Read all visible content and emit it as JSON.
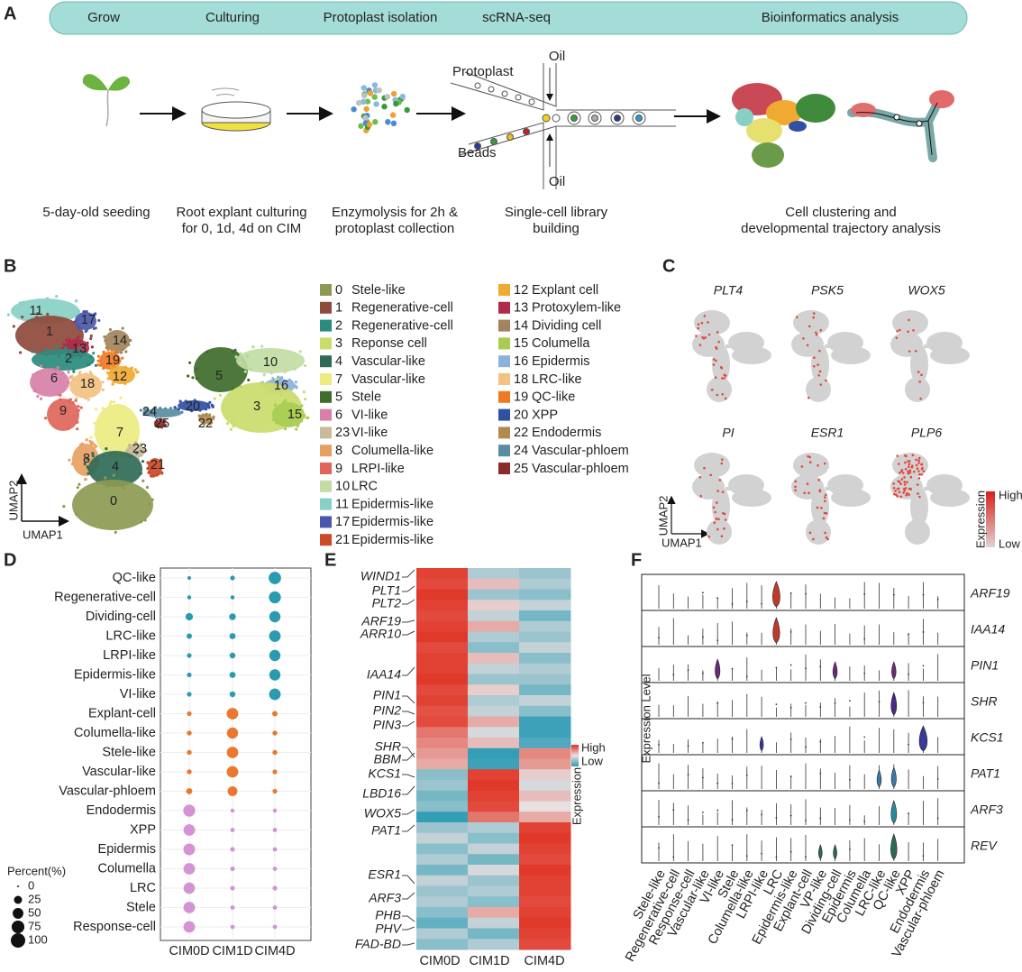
{
  "panel_a": {
    "label": "A",
    "steps": [
      "Grow",
      "Culturing",
      "Protoplast isolation",
      "scRNA-seq",
      "Bioinformatics analysis"
    ],
    "captions": [
      [
        "5-day-old seeding"
      ],
      [
        "Root explant culturing",
        "for 0, 1d, 4d  on CIM"
      ],
      [
        "Enzymolysis for 2h &",
        "protoplast collection"
      ],
      [
        "Single-cell library",
        "building"
      ],
      [
        "Cell clustering and",
        "developmental trajectory analysis"
      ]
    ],
    "device_labels": [
      "Protoplast",
      "Oil",
      "Beads",
      "Oil"
    ]
  },
  "panel_b": {
    "label": "B",
    "x_label": "UMAP1",
    "y_label": "UMAP2",
    "clusters": [
      {
        "id": "0",
        "name": "Stele-like",
        "color": "#8c9a52"
      },
      {
        "id": "1",
        "name": "Regenerative-cell",
        "color": "#8e4a3c"
      },
      {
        "id": "2",
        "name": "Regenerative-cell",
        "color": "#2a8c7c"
      },
      {
        "id": "3",
        "name": "Reponse cell",
        "color": "#cbdc6c"
      },
      {
        "id": "4",
        "name": "Vascular-like",
        "color": "#2f6a57"
      },
      {
        "id": "7",
        "name": "Vascular-like",
        "color": "#ecec80"
      },
      {
        "id": "5",
        "name": "Stele",
        "color": "#3f6b2b"
      },
      {
        "id": "6",
        "name": "VI-like",
        "color": "#d880a8"
      },
      {
        "id": "23",
        "name": "VI-like",
        "color": "#c9ba9c"
      },
      {
        "id": "8",
        "name": "Columella-like",
        "color": "#e8a062"
      },
      {
        "id": "9",
        "name": "LRPI-like",
        "color": "#e0665a"
      },
      {
        "id": "10",
        "name": "LRC",
        "color": "#c2dca4"
      },
      {
        "id": "11",
        "name": "Epidermis-like",
        "color": "#88d0c6"
      },
      {
        "id": "17",
        "name": "Epidermis-like",
        "color": "#4a58ac"
      },
      {
        "id": "21",
        "name": "Epidermis-like",
        "color": "#cc4a28"
      },
      {
        "id": "12",
        "name": "Explant cell",
        "color": "#f0aa32"
      },
      {
        "id": "13",
        "name": "Protoxylem-like",
        "color": "#b02a4a"
      },
      {
        "id": "14",
        "name": "Dividing cell",
        "color": "#a2845c"
      },
      {
        "id": "15",
        "name": "Columella",
        "color": "#a8cc52"
      },
      {
        "id": "16",
        "name": "Epidermis",
        "color": "#8cb2da"
      },
      {
        "id": "18",
        "name": "LRC-like",
        "color": "#f2c282"
      },
      {
        "id": "19",
        "name": "QC-like",
        "color": "#f07a22"
      },
      {
        "id": "20",
        "name": "XPP",
        "color": "#3050a2"
      },
      {
        "id": "22",
        "name": "Endodermis",
        "color": "#b08a52"
      },
      {
        "id": "24",
        "name": "Vascular-phloem",
        "color": "#5a8ca2"
      },
      {
        "id": "25",
        "name": "Vascular-phloem",
        "color": "#8a2c2c"
      }
    ]
  },
  "panel_c": {
    "label": "C",
    "genes": [
      "PLT4",
      "PSK5",
      "WOX5",
      "PI",
      "ESR1",
      "PLP6"
    ],
    "legend_title": "Expression",
    "legend_high": "High",
    "legend_low": "Low",
    "x_label": "UMAP1",
    "y_label": "UMAP2"
  },
  "panel_d": {
    "label": "D",
    "columns": [
      "CIM0D",
      "CIM1D",
      "CIM4D"
    ],
    "rows": [
      {
        "name": "QC-like",
        "color": "#2a9ab0",
        "values": [
          2,
          5,
          70
        ]
      },
      {
        "name": "Regenerative-cell",
        "color": "#2a9ab0",
        "values": [
          3,
          3,
          65
        ]
      },
      {
        "name": "Dividing-cell",
        "color": "#2a9ab0",
        "values": [
          20,
          15,
          55
        ]
      },
      {
        "name": "LRC-like",
        "color": "#2a9ab0",
        "values": [
          8,
          12,
          60
        ]
      },
      {
        "name": "LRPI-like",
        "color": "#2a9ab0",
        "values": [
          5,
          10,
          55
        ]
      },
      {
        "name": "Epidermis-like",
        "color": "#2a9ab0",
        "values": [
          5,
          12,
          55
        ]
      },
      {
        "name": "VI-like",
        "color": "#2a9ab0",
        "values": [
          5,
          10,
          60
        ]
      },
      {
        "name": "Explant-cell",
        "color": "#ea7830",
        "values": [
          5,
          60,
          8
        ]
      },
      {
        "name": "Columella-like",
        "color": "#ea7830",
        "values": [
          6,
          55,
          6
        ]
      },
      {
        "name": "Stele-like",
        "color": "#ea7830",
        "values": [
          6,
          58,
          6
        ]
      },
      {
        "name": "Vascular-like",
        "color": "#ea7830",
        "values": [
          6,
          60,
          5
        ]
      },
      {
        "name": "Vascular-phloem",
        "color": "#ea7830",
        "values": [
          12,
          40,
          5
        ]
      },
      {
        "name": "Endodermis",
        "color": "#d494d4",
        "values": [
          65,
          3,
          3
        ]
      },
      {
        "name": "XPP",
        "color": "#d494d4",
        "values": [
          60,
          4,
          4
        ]
      },
      {
        "name": "Epidermis",
        "color": "#d494d4",
        "values": [
          62,
          5,
          4
        ]
      },
      {
        "name": "Columella",
        "color": "#d494d4",
        "values": [
          60,
          5,
          4
        ]
      },
      {
        "name": "LRC",
        "color": "#d494d4",
        "values": [
          58,
          5,
          5
        ]
      },
      {
        "name": "Stele",
        "color": "#d494d4",
        "values": [
          60,
          4,
          4
        ]
      },
      {
        "name": "Response-cell",
        "color": "#d494d4",
        "values": [
          60,
          4,
          4
        ]
      }
    ],
    "size_legend_title": "Percent(%)",
    "size_legend": [
      0,
      25,
      50,
      75,
      100
    ]
  },
  "panel_e": {
    "label": "E",
    "columns": [
      "CIM0D",
      "CIM1D",
      "CIM4D"
    ],
    "genes": [
      "WIND1",
      "PLT1",
      "PLT2",
      "ARF19",
      "ARR10",
      "IAA14",
      "PIN1",
      "PIN2",
      "PIN3",
      "SHR",
      "BBM",
      "KCS1",
      "LBD16",
      "WOX5",
      "PAT1",
      "ESR1",
      "ARF3",
      "PHB",
      "PHV",
      "FAD-BD"
    ],
    "matrix": [
      [
        0.9,
        -0.3,
        -0.4
      ],
      [
        0.85,
        0.2,
        -0.3
      ],
      [
        0.95,
        -0.4,
        -0.5
      ],
      [
        0.9,
        0.1,
        -0.2
      ],
      [
        0.85,
        -0.2,
        -0.6
      ],
      [
        0.9,
        0.3,
        -0.3
      ],
      [
        0.95,
        -0.3,
        -0.4
      ],
      [
        0.85,
        -0.5,
        -0.2
      ],
      [
        0.9,
        0.2,
        -0.5
      ],
      [
        0.9,
        -0.2,
        -0.3
      ],
      [
        0.95,
        -0.4,
        -0.4
      ],
      [
        0.85,
        0.1,
        -0.6
      ],
      [
        0.9,
        -0.3,
        -0.2
      ],
      [
        0.8,
        -0.2,
        -0.5
      ],
      [
        0.85,
        0.3,
        -0.9
      ],
      [
        0.6,
        -0.1,
        -0.9
      ],
      [
        0.5,
        0.2,
        -0.8
      ],
      [
        0.4,
        -0.95,
        0.5
      ],
      [
        0.3,
        -0.9,
        0.4
      ],
      [
        -0.5,
        0.9,
        0.1
      ],
      [
        -0.4,
        0.95,
        -0.1
      ],
      [
        -0.6,
        0.9,
        0.2
      ],
      [
        -0.5,
        0.85,
        0.0
      ],
      [
        -0.95,
        0.6,
        0.3
      ],
      [
        -0.4,
        -0.3,
        0.9
      ],
      [
        -0.2,
        -0.5,
        0.95
      ],
      [
        -0.5,
        -0.2,
        0.9
      ],
      [
        -0.3,
        -0.6,
        0.85
      ],
      [
        -0.6,
        -0.1,
        0.95
      ],
      [
        -0.2,
        -0.4,
        0.9
      ],
      [
        -0.4,
        -0.3,
        0.9
      ],
      [
        -0.3,
        -0.5,
        0.85
      ],
      [
        -0.5,
        0.3,
        0.9
      ],
      [
        -0.7,
        -0.2,
        0.95
      ],
      [
        -0.3,
        -0.6,
        0.9
      ],
      [
        -0.5,
        -0.3,
        0.85
      ]
    ],
    "legend_title": "Expression",
    "legend_high": "High",
    "legend_low": "Low"
  },
  "panel_f": {
    "label": "F",
    "y_label": "Expression Level",
    "genes": [
      "ARF19",
      "IAA14",
      "PIN1",
      "SHR",
      "KCS1",
      "PAT1",
      "ARF3",
      "REV"
    ],
    "cell_types": [
      "Stele-like",
      "Regenerative-cell",
      "Response-cell",
      "Vascular-like",
      "VI-like",
      "Stele",
      "Columella-like",
      "LRPI-like",
      "LRC",
      "Epidermis-like",
      "Explant-cell",
      "VP-like",
      "Dividing-cell",
      "Epidermis",
      "Columella",
      "LRC-like",
      "QC-like",
      "XPP",
      "Endodermis",
      "Vascular-phloem"
    ]
  }
}
